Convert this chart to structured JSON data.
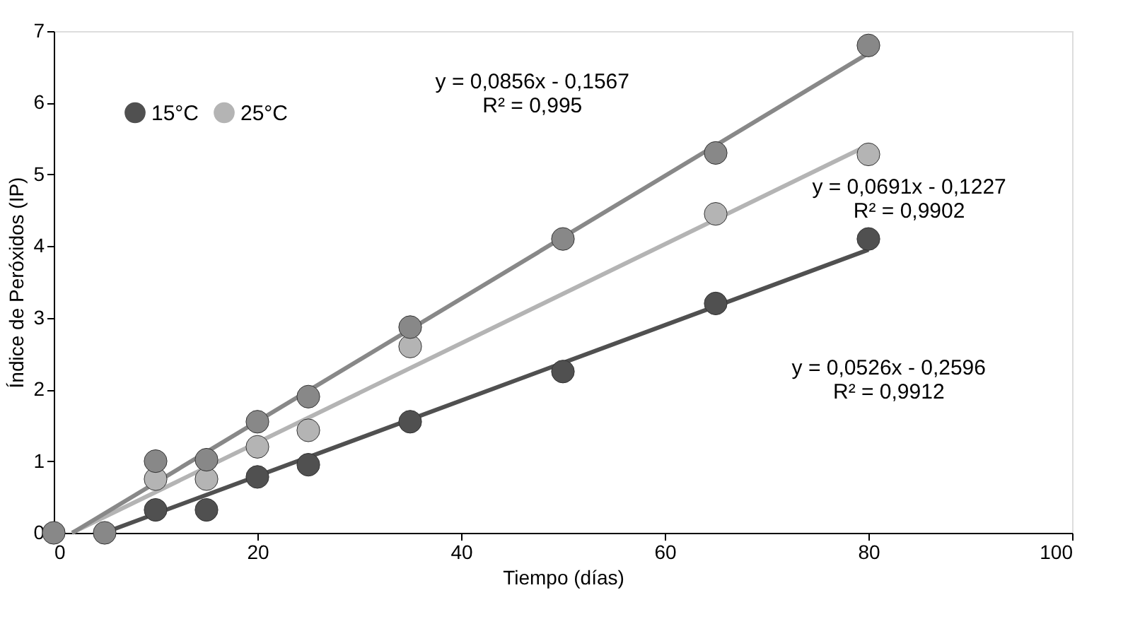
{
  "chart_data": {
    "type": "scatter",
    "xlabel": "Tiempo (días)",
    "ylabel": "Índice de Peróxidos (IP)",
    "xlim": [
      0,
      100
    ],
    "xticks": [
      0,
      20,
      40,
      60,
      80,
      100
    ],
    "ylim": [
      0,
      7
    ],
    "yticks": [
      0,
      1,
      2,
      3,
      4,
      5,
      6,
      7
    ],
    "grid": false,
    "legend": "top left",
    "marker": "circle",
    "series": [
      {
        "name": "15°C",
        "color": "#505050",
        "x": [
          10,
          15,
          20,
          25,
          35,
          50,
          65,
          80
        ],
        "values": [
          0.32,
          0.32,
          0.78,
          0.95,
          1.55,
          2.25,
          3.2,
          4.1
        ]
      },
      {
        "name": "25°C",
        "color": "#b4b4b4",
        "x": [
          10,
          15,
          20,
          25,
          35,
          65,
          80
        ],
        "values": [
          0.75,
          0.75,
          1.2,
          1.43,
          2.6,
          4.45,
          5.28
        ]
      },
      {
        "color": "#888888",
        "x": [
          0,
          5,
          10,
          15,
          20,
          25,
          35,
          50,
          65,
          80
        ],
        "values": [
          0,
          0,
          1.0,
          1.02,
          1.55,
          1.9,
          2.87,
          4.1,
          5.3,
          6.8
        ]
      },
      {
        "color": "#505050",
        "type": "line",
        "marker": "none",
        "x": [
          4.94,
          80
        ],
        "values": [
          0,
          3.95
        ]
      },
      {
        "color": "#b4b4b4",
        "type": "line",
        "marker": "none",
        "x": [
          1.78,
          80
        ],
        "values": [
          0,
          5.41
        ]
      },
      {
        "color": "#888888",
        "type": "line",
        "marker": "none",
        "x": [
          1.83,
          80
        ],
        "values": [
          0,
          6.69
        ]
      }
    ],
    "annotations": [
      "y = 0,0856x - 0,1567\nR² = 0,995",
      "y = 0,0691x - 0,1227\nR² = 0,9902",
      "y = 0,0526x - 0,2596\nR² = 0,9912"
    ]
  }
}
